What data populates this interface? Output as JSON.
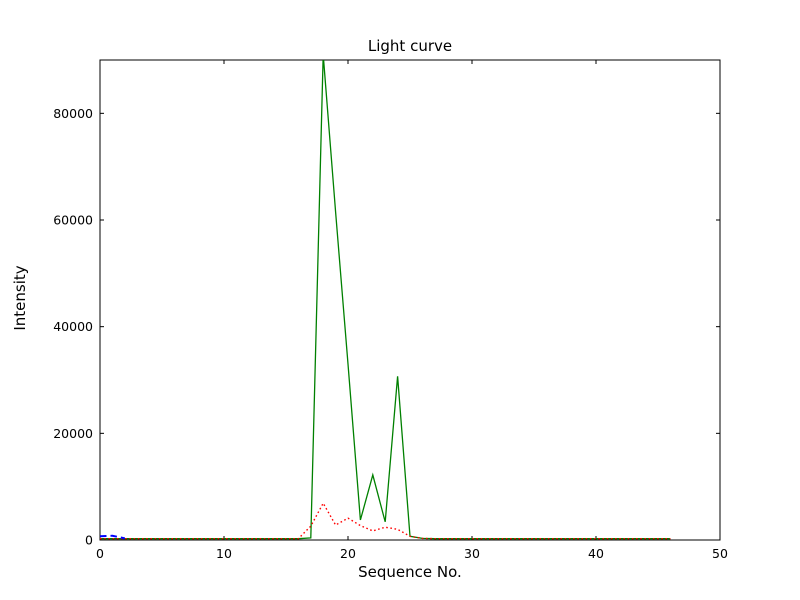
{
  "chart_data": {
    "type": "line",
    "title": "Light curve",
    "xlabel": "Sequence No.",
    "ylabel": "Intensity",
    "xlim": [
      0,
      50
    ],
    "ylim": [
      0,
      90000
    ],
    "x_ticks": [
      0,
      10,
      20,
      30,
      40,
      50
    ],
    "y_ticks": [
      0,
      20000,
      40000,
      60000,
      80000
    ],
    "grid": false,
    "legend": "none",
    "background": "#ffffff",
    "axes_color": "#000000",
    "series": [
      {
        "name": "green-solid",
        "color": "#008000",
        "style": "solid",
        "x": [
          0,
          1,
          2,
          3,
          4,
          5,
          6,
          7,
          8,
          9,
          10,
          11,
          12,
          13,
          14,
          15,
          16,
          17,
          18,
          19,
          20,
          21,
          22,
          23,
          24,
          25,
          26,
          27,
          28,
          29,
          30,
          31,
          32,
          33,
          34,
          35,
          36,
          37,
          38,
          39,
          40,
          41,
          42,
          43,
          44,
          45,
          46
        ],
        "values": [
          250,
          250,
          250,
          250,
          250,
          250,
          250,
          250,
          250,
          250,
          250,
          250,
          250,
          250,
          250,
          250,
          250,
          400,
          91000,
          61500,
          33000,
          3750,
          12200,
          3400,
          30700,
          700,
          300,
          250,
          250,
          250,
          250,
          250,
          250,
          250,
          250,
          250,
          250,
          250,
          250,
          250,
          250,
          250,
          250,
          250,
          250,
          250,
          250
        ]
      },
      {
        "name": "red-dotted",
        "color": "#ff0000",
        "style": "dotted",
        "x": [
          0,
          1,
          2,
          3,
          4,
          5,
          6,
          7,
          8,
          9,
          10,
          11,
          12,
          13,
          14,
          15,
          16,
          17,
          18,
          19,
          20,
          21,
          22,
          23,
          24,
          25,
          26,
          27,
          28,
          29,
          30,
          31,
          32,
          33,
          34,
          35,
          36,
          37,
          38,
          39,
          40,
          41,
          42,
          43,
          44,
          45,
          46
        ],
        "values": [
          250,
          250,
          250,
          250,
          250,
          250,
          250,
          250,
          250,
          250,
          250,
          250,
          250,
          250,
          250,
          250,
          250,
          2600,
          6900,
          2800,
          4100,
          2700,
          1700,
          2400,
          2000,
          700,
          300,
          250,
          250,
          250,
          250,
          250,
          250,
          250,
          250,
          250,
          250,
          250,
          250,
          250,
          250,
          250,
          250,
          250,
          250,
          250,
          250
        ]
      },
      {
        "name": "blue-dashed",
        "color": "#0000ff",
        "style": "dashed",
        "x": [
          0,
          1,
          2
        ],
        "values": [
          700,
          800,
          300
        ]
      }
    ]
  }
}
